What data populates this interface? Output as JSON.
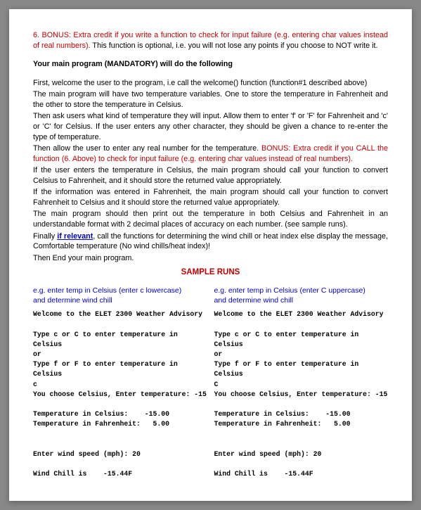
{
  "bonus6": {
    "red_part": "6. BONUS: Extra credit if you write a function to check for input failure (e.g. entering char values instead of real numbers).",
    "black_part": " This function is optional, i.e. you will not lose any points if you choose to NOT write it."
  },
  "main_heading": "Your main program (MANDATORY) will do the following",
  "para1": "First, welcome the user to the program, i.e  call the welcome() function (function#1 described above)",
  "para2": "The main program will have two temperature variables.  One to store the temperature in Fahrenheit and the other to store the temperature in Celsius.",
  "para3": "Then ask users what kind of temperature they will input. Allow them to enter 'f' or 'F' for Fahrenheit and 'c' or 'C' for Celsius. If the user enters any other character, they should be given a chance to re-enter the type of temperature.",
  "para4a": "Then allow the user to enter any real number for the temperature. ",
  "para4b_red": "BONUS: Extra credit if you CALL the function (6. Above) to check for input failure (e.g. entering char values instead of real numbers).",
  "para5": "If the user enters the temperature in Celsius, the main program should call your function to convert Celsius to Fahrenheit, and it should store the returned value appropriately.",
  "para6": "If the information was entered in Fahrenheit, the main program should call your function to convert Fahrenheit to Celsius and it should store the returned value appropriately.",
  "para7": "The main program should then print out the temperature in both Celsius and Fahrenheit in an understandable format with 2 decimal places of accuracy on each number. (see sample runs).",
  "para8a": "Finally ",
  "para8b_blue": "if relevant",
  "para8c": ", call the functions for determining the wind chill or heat index else display the message, Comfortable temperature (No wind chills/heat index)!",
  "para9": "Then End your main program.",
  "sample_title": "SAMPLE RUNS",
  "left": {
    "header1": "e.g. enter temp in Celsius (enter c lowercase)",
    "header2": "and determine wind chill",
    "line1": "Welcome to the ELET 2300 Weather Advisory",
    "line2": "Type c or C to enter temperature in Celsius",
    "line3": "or",
    "line4": "Type f or F to enter temperature in Celsius",
    "line5": "c",
    "line6": "You choose Celsius, Enter temperature: -15",
    "line7": "Temperature in Celsius:    -15.00",
    "line8": "Temperature in Fahrenheit:   5.00",
    "line9": "Enter wind speed (mph): 20",
    "line10": "Wind Chill is    -15.44F"
  },
  "right": {
    "header1": "e.g. enter temp in Celsius (enter C uppercase)",
    "header2": "and determine wind chill",
    "line1": "Welcome to the ELET 2300 Weather Advisory",
    "line2": "Type c or C to enter temperature in Celsius",
    "line3": "or",
    "line4": "Type f or F to enter temperature in Celsius",
    "line5": "C",
    "line6": "You choose Celsius, Enter temperature: -15",
    "line7": "Temperature in Celsius:    -15.00",
    "line8": "Temperature in Fahrenheit:   5.00",
    "line9": "Enter wind speed (mph): 20",
    "line10": "Wind Chill is    -15.44F"
  }
}
